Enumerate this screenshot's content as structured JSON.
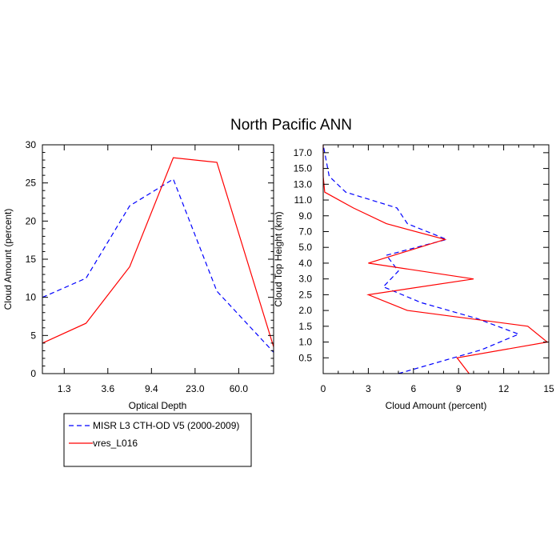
{
  "title": "North Pacific ANN",
  "legend": {
    "placement": "bottom-left",
    "entries": [
      {
        "name": "MISR L3 CTH-OD V5 (2000-2009)",
        "color": "#0000ff",
        "dash": "dashed"
      },
      {
        "name": "vres_L016",
        "color": "#ff0000",
        "dash": "solid"
      }
    ]
  },
  "chart_data": [
    {
      "type": "line",
      "panel": "left",
      "xlabel": "Optical Depth",
      "ylabel": "Cloud Amount (percent)",
      "x_tick_labels": [
        "1.3",
        "3.6",
        "9.4",
        "23.0",
        "60.0"
      ],
      "x_tick_positions": [
        0.5,
        1.5,
        2.5,
        3.5,
        4.5
      ],
      "xlim": [
        0,
        5.3
      ],
      "ylim": [
        0,
        30
      ],
      "y_ticks": [
        0,
        5,
        10,
        15,
        20,
        25,
        30
      ],
      "y_tick_labels": [
        "0",
        "5",
        "10",
        "15",
        "20",
        "25",
        "30"
      ],
      "series": [
        {
          "name": "MISR L3 CTH-OD V5 (2000-2009)",
          "color": "#0000ff",
          "dash": "dashed",
          "x": [
            0,
            1,
            2,
            3,
            4,
            5.3
          ],
          "y": [
            10,
            12.5,
            22,
            25.5,
            10.8,
            2.8
          ]
        },
        {
          "name": "vres_L016",
          "color": "#ff0000",
          "dash": "solid",
          "x": [
            0,
            1,
            2,
            3,
            4,
            5.3
          ],
          "y": [
            4,
            6.6,
            14,
            28.3,
            27.7,
            3.5
          ]
        }
      ]
    },
    {
      "type": "line",
      "panel": "right",
      "xlabel": "Cloud Amount (percent)",
      "ylabel": "Cloud Top Height (km)",
      "x_ticks": [
        0,
        3,
        6,
        9,
        12,
        15
      ],
      "x_tick_labels": [
        "0",
        "3",
        "6",
        "9",
        "12",
        "15"
      ],
      "xlim": [
        0,
        15
      ],
      "y_tick_labels": [
        "0.5",
        "1.0",
        "1.5",
        "2.0",
        "2.5",
        "3.0",
        "4.0",
        "5.0",
        "7.0",
        "9.0",
        "11.0",
        "13.0",
        "15.0",
        "17.0"
      ],
      "y_tick_positions": [
        1,
        2,
        3,
        4,
        5,
        6,
        7,
        8,
        9,
        10,
        11,
        12,
        13,
        14
      ],
      "ylim": [
        0,
        14.5
      ],
      "series": [
        {
          "name": "MISR L3 CTH-OD V5 (2000-2009)",
          "color": "#0000ff",
          "dash": "dashed",
          "x": [
            5,
            10.5,
            13,
            10.2,
            6.5,
            4,
            5,
            4.2,
            8.2,
            5.6,
            4.9,
            1.5,
            0.4,
            0
          ],
          "y": [
            0,
            1.5,
            2.5,
            3.5,
            4.5,
            5.5,
            6.5,
            7.5,
            8.5,
            9.5,
            10.5,
            11.5,
            12.5,
            14.5
          ]
        },
        {
          "name": "vres_L016",
          "color": "#ff0000",
          "dash": "solid",
          "x": [
            9.7,
            8.9,
            14.9,
            13.6,
            5.6,
            3,
            10,
            3,
            8.1,
            4.2,
            2,
            0.1,
            0,
            0
          ],
          "y": [
            0,
            1,
            2,
            3,
            4,
            5,
            6,
            7,
            8.5,
            9.5,
            10.5,
            11.5,
            12.5,
            14.5
          ]
        }
      ]
    }
  ]
}
